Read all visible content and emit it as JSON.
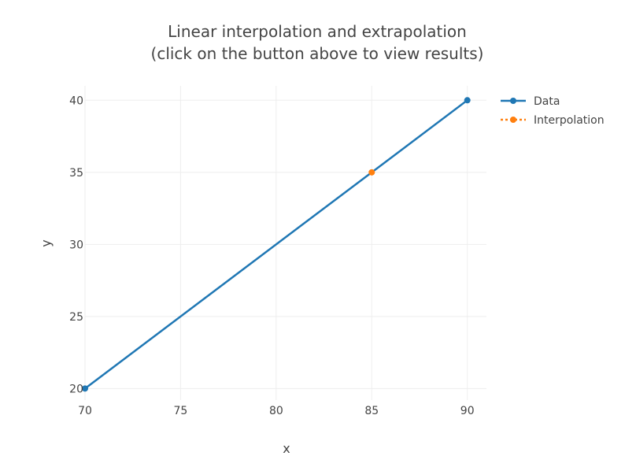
{
  "chart_data": {
    "type": "line",
    "title_lines": [
      "Linear interpolation and extrapolation",
      "(click on the button above to view results)"
    ],
    "xlabel": "x",
    "ylabel": "y",
    "xlim": [
      70,
      91
    ],
    "ylim": [
      19.2,
      41
    ],
    "x_ticks": [
      70,
      75,
      80,
      85,
      90
    ],
    "y_ticks": [
      20,
      25,
      30,
      35,
      40
    ],
    "grid": true,
    "legend_position": "top-right",
    "series": [
      {
        "name": "Data",
        "color": "#1f77b4",
        "style": "solid",
        "markers": true,
        "x": [
          70,
          90
        ],
        "y": [
          20,
          40
        ]
      },
      {
        "name": "Interpolation",
        "color": "#ff7f0e",
        "style": "dotted",
        "markers": true,
        "x": [
          85
        ],
        "y": [
          35
        ]
      }
    ]
  }
}
